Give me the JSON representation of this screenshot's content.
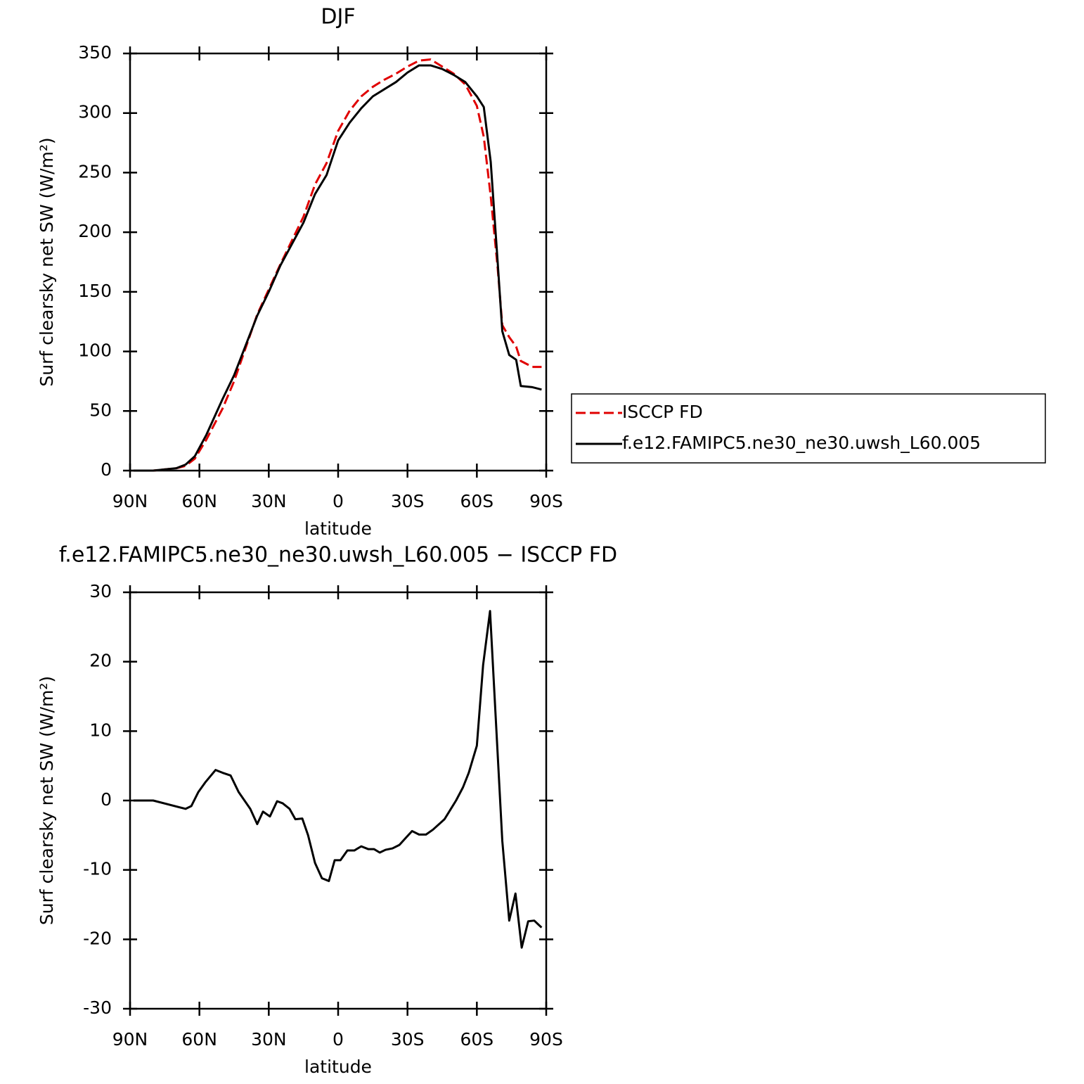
{
  "chart_data": [
    {
      "type": "line",
      "title": "DJF",
      "xlabel": "latitude",
      "ylabel": "Surf clearsky net SW (W/m²)",
      "x": [
        88.5,
        80,
        70,
        66,
        62,
        57,
        50,
        45,
        40,
        35,
        30,
        25,
        20,
        15,
        10,
        5,
        0,
        -5,
        -10,
        -15,
        -20,
        -25,
        -30,
        -35,
        -40,
        -45,
        -50,
        -55,
        -60,
        -63,
        -66,
        -69,
        -71,
        -74,
        -77,
        -79,
        -84,
        -88
      ],
      "series": [
        {
          "name": "ISCCP FD",
          "color": "#e00000",
          "dashed": true,
          "values": [
            0,
            0,
            2,
            4,
            10,
            26,
            52,
            75,
            103,
            131,
            152,
            173,
            193,
            213,
            240,
            258,
            285,
            302,
            314,
            322,
            328,
            333,
            339,
            344,
            345,
            339,
            333,
            324,
            306,
            280,
            230,
            170,
            122,
            112,
            104,
            92,
            87,
            87
          ]
        },
        {
          "name": "f.e12.FAMIPC5.ne30_ne30.uwsh_L60.005",
          "color": "#000000",
          "dashed": false,
          "values": [
            0,
            0,
            2,
            5,
            12,
            30,
            60,
            80,
            105,
            130,
            150,
            172,
            190,
            208,
            232,
            248,
            277,
            292,
            304,
            314,
            320,
            326,
            334,
            340,
            340,
            337,
            332,
            326,
            314,
            305,
            259,
            175,
            117,
            97,
            93,
            71,
            70,
            68
          ]
        }
      ],
      "xlim": [
        90,
        -90
      ],
      "xticks": [
        {
          "value": 90,
          "label": "90N"
        },
        {
          "value": 60,
          "label": "60N"
        },
        {
          "value": 30,
          "label": "30N"
        },
        0,
        {
          "value": -30,
          "label": "30S"
        },
        {
          "value": -60,
          "label": "60S"
        },
        {
          "value": -90,
          "label": "90S"
        }
      ],
      "ylim": [
        0,
        350
      ],
      "yticks": [
        0,
        50,
        100,
        150,
        200,
        250,
        300,
        350
      ],
      "legend": "right"
    },
    {
      "type": "line",
      "title": "f.e12.FAMIPC5.ne30_ne30.uwsh_L60.005 − ISCCP FD",
      "xlabel": "latitude",
      "ylabel": "Surf clearsky net SW (W/m²)",
      "x": [
        88.5,
        80,
        66,
        63.5,
        60.5,
        57.5,
        53,
        50,
        46.5,
        43,
        38,
        35,
        32.5,
        29.5,
        26.4,
        24,
        21,
        18.5,
        15.5,
        13,
        10,
        7,
        4,
        1.5,
        -1,
        -4,
        -7,
        -10,
        -13,
        -15.5,
        -18,
        -20.5,
        -23.5,
        -26.5,
        -29.5,
        -32,
        -35,
        -38,
        -41,
        -46,
        -51,
        -54,
        -56.5,
        -60,
        -62.7,
        -65.7,
        -71,
        -74,
        -76.7,
        -79.4,
        -82.2,
        -84.8,
        -88
      ],
      "series": [
        {
          "name": null,
          "color": "#000000",
          "dashed": false,
          "values": [
            0,
            0,
            -1.2,
            -0.8,
            1.2,
            2.6,
            4.4,
            4,
            3.6,
            1.2,
            -1.2,
            -3.4,
            -1.6,
            -2.3,
            -0.1,
            -0.4,
            -1.2,
            -2.7,
            -2.6,
            -5,
            -9,
            -11.2,
            -11.6,
            -8.6,
            -8.6,
            -7.2,
            -7.2,
            -6.6,
            -7,
            -7,
            -7.5,
            -7.1,
            -6.9,
            -6.4,
            -5.3,
            -4.4,
            -4.9,
            -4.9,
            -4.2,
            -2.7,
            0,
            1.9,
            4,
            7.9,
            19.5,
            27.3,
            -5.8,
            -17.3,
            -13.4,
            -21.2,
            -17.4,
            -17.3,
            -18.3
          ]
        }
      ],
      "xlim": [
        90,
        -90
      ],
      "xticks": [
        {
          "value": 90,
          "label": "90N"
        },
        {
          "value": 60,
          "label": "60N"
        },
        {
          "value": 30,
          "label": "30N"
        },
        0,
        {
          "value": -30,
          "label": "30S"
        },
        {
          "value": -60,
          "label": "60S"
        },
        {
          "value": -90,
          "label": "90S"
        }
      ],
      "ylim": [
        -30,
        30
      ],
      "yticks": [
        -30,
        -20,
        -10,
        0,
        10,
        20,
        30
      ]
    }
  ]
}
